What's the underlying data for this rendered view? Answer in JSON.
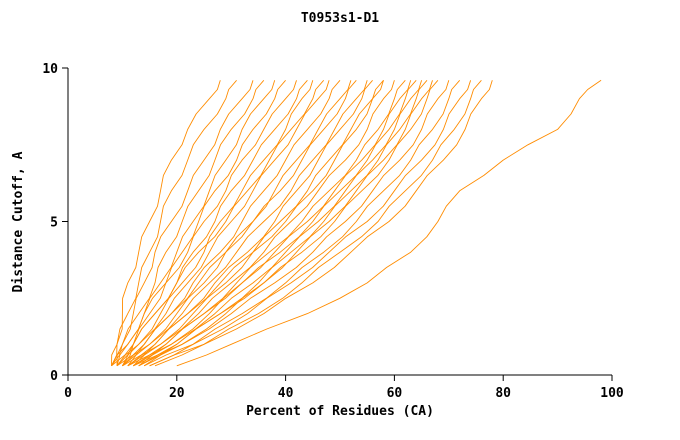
{
  "title": "T0953s1-D1",
  "chart_data": {
    "type": "line",
    "title": "T0953s1-D1",
    "xlabel": "Percent of Residues (CA)",
    "ylabel": "Distance Cutoff, A",
    "xlim": [
      0,
      100
    ],
    "ylim": [
      0,
      10
    ],
    "x_ticks": [
      0,
      20,
      40,
      60,
      80,
      100
    ],
    "y_ticks": [
      0,
      5,
      10
    ],
    "grid": false,
    "legend": "none",
    "line_color": "#FF8C00",
    "axis_color": "#000000",
    "background_color": "#FFFFFF",
    "cutoffs": [
      0.3,
      1,
      2,
      3,
      4,
      5,
      6,
      7,
      8,
      9,
      9.6
    ],
    "series": [
      {
        "x": [
          8,
          9,
          10,
          11,
          13,
          15,
          17,
          19,
          22,
          26,
          28
        ]
      },
      {
        "x": [
          8,
          9,
          11,
          13,
          15,
          17,
          19,
          22,
          25,
          29,
          31
        ]
      },
      {
        "x": [
          9,
          10,
          12,
          14,
          16,
          19,
          22,
          25,
          28,
          32,
          34
        ]
      },
      {
        "x": [
          8,
          10,
          13,
          16,
          18,
          21,
          24,
          27,
          30,
          34,
          36
        ]
      },
      {
        "x": [
          9,
          11,
          14,
          17,
          20,
          23,
          26,
          29,
          32,
          36,
          38
        ]
      },
      {
        "x": [
          10,
          12,
          15,
          18,
          21,
          24,
          27,
          31,
          34,
          38,
          40
        ]
      },
      {
        "x": [
          8,
          11,
          14,
          18,
          22,
          25,
          29,
          32,
          36,
          40,
          42
        ]
      },
      {
        "x": [
          9,
          12,
          16,
          20,
          23,
          27,
          30,
          34,
          38,
          42,
          44
        ]
      },
      {
        "x": [
          10,
          13,
          17,
          21,
          25,
          28,
          32,
          36,
          40,
          43,
          45
        ]
      },
      {
        "x": [
          8,
          12,
          16,
          20,
          24,
          29,
          33,
          37,
          41,
          45,
          47
        ]
      },
      {
        "x": [
          9,
          13,
          18,
          22,
          26,
          30,
          34,
          38,
          42,
          46,
          48
        ]
      },
      {
        "x": [
          10,
          14,
          19,
          23,
          28,
          32,
          36,
          40,
          44,
          48,
          50
        ]
      },
      {
        "x": [
          11,
          15,
          20,
          25,
          29,
          34,
          38,
          42,
          46,
          50,
          52
        ]
      },
      {
        "x": [
          9,
          14,
          19,
          24,
          29,
          34,
          39,
          43,
          47,
          51,
          53
        ]
      },
      {
        "x": [
          10,
          15,
          21,
          26,
          31,
          36,
          41,
          45,
          49,
          53,
          55
        ]
      },
      {
        "x": [
          11,
          16,
          22,
          27,
          33,
          38,
          42,
          46,
          50,
          54,
          56
        ]
      },
      {
        "x": [
          12,
          17,
          23,
          29,
          34,
          39,
          44,
          48,
          52,
          56,
          58
        ]
      },
      {
        "x": [
          10,
          16,
          22,
          28,
          34,
          40,
          45,
          49,
          53,
          56,
          58
        ]
      },
      {
        "x": [
          11,
          17,
          24,
          30,
          36,
          41,
          46,
          51,
          55,
          58,
          60
        ]
      },
      {
        "x": [
          12,
          18,
          25,
          31,
          37,
          43,
          48,
          53,
          57,
          60,
          62
        ]
      },
      {
        "x": [
          13,
          19,
          26,
          32,
          38,
          44,
          49,
          54,
          58,
          61,
          63
        ]
      },
      {
        "x": [
          11,
          18,
          25,
          32,
          39,
          45,
          50,
          55,
          59,
          62,
          64
        ]
      },
      {
        "x": [
          12,
          19,
          27,
          34,
          40,
          46,
          51,
          56,
          60,
          63,
          65
        ]
      },
      {
        "x": [
          13,
          20,
          28,
          35,
          41,
          47,
          52,
          57,
          61,
          64,
          66
        ]
      },
      {
        "x": [
          14,
          21,
          29,
          36,
          42,
          48,
          53,
          58,
          62,
          65,
          67
        ]
      },
      {
        "x": [
          12,
          20,
          28,
          36,
          43,
          49,
          54,
          59,
          63,
          66,
          68
        ]
      },
      {
        "x": [
          13,
          21,
          30,
          38,
          45,
          51,
          56,
          61,
          65,
          68,
          70
        ]
      },
      {
        "x": [
          15,
          23,
          32,
          40,
          47,
          53,
          58,
          63,
          67,
          70,
          72
        ]
      },
      {
        "x": [
          14,
          23,
          33,
          41,
          48,
          55,
          60,
          65,
          69,
          72,
          74
        ]
      },
      {
        "x": [
          16,
          25,
          35,
          43,
          50,
          57,
          62,
          67,
          71,
          74,
          76
        ]
      },
      {
        "x": [
          15,
          25,
          36,
          45,
          52,
          59,
          64,
          69,
          73,
          76,
          78
        ]
      },
      {
        "x": [
          20,
          30,
          44,
          55,
          63,
          68,
          72,
          80,
          90,
          94,
          98
        ]
      }
    ]
  }
}
